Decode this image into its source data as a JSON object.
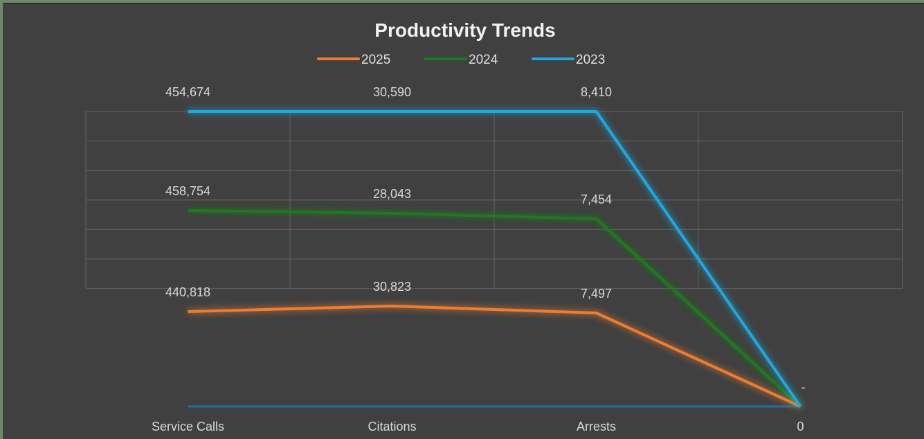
{
  "chart_data": {
    "type": "line",
    "title": "Productivity Trends",
    "categories": [
      "Service Calls",
      "Citations",
      "Arrests",
      "0"
    ],
    "series": [
      {
        "name": "2025",
        "color": "#ed7d31",
        "values": [
          440818,
          30823,
          7497,
          0
        ],
        "labels": [
          "440,818",
          "30,823",
          "7,497",
          "-"
        ]
      },
      {
        "name": "2024",
        "color": "#1e7b1e",
        "values": [
          458754,
          28043,
          7454,
          0
        ],
        "labels": [
          "458,754",
          "28,043",
          "7,454",
          ""
        ]
      },
      {
        "name": "2023",
        "color": "#1fa8e0",
        "values": [
          454674,
          30590,
          8410,
          0
        ],
        "labels": [
          "454,674",
          "30,590",
          "8,410",
          ""
        ]
      }
    ],
    "legend_position": "top",
    "grid": true
  }
}
